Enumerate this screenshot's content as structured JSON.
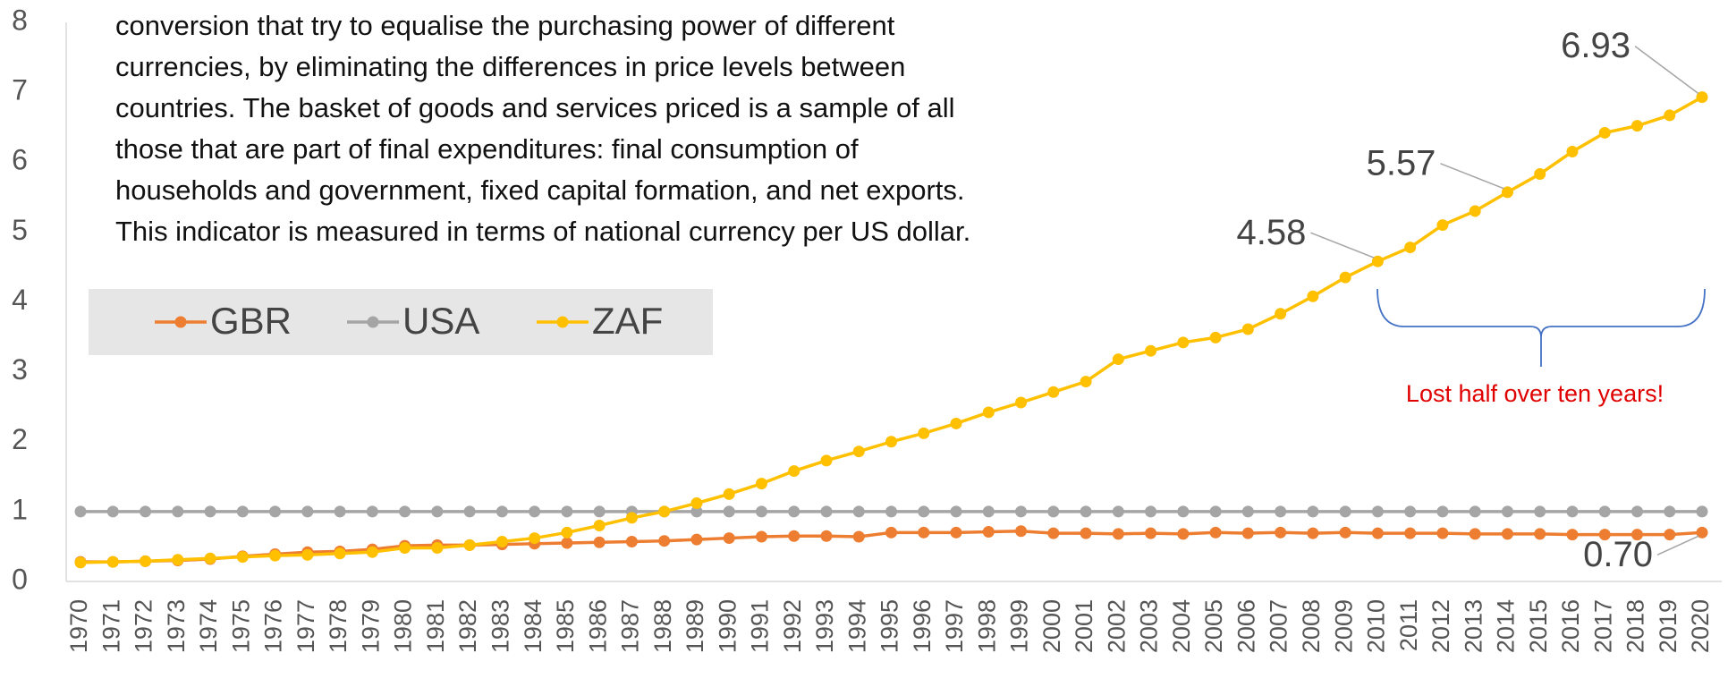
{
  "chart_data": {
    "type": "line",
    "categories": [
      "1970",
      "1971",
      "1972",
      "1973",
      "1974",
      "1975",
      "1976",
      "1977",
      "1978",
      "1979",
      "1980",
      "1981",
      "1982",
      "1983",
      "1984",
      "1985",
      "1986",
      "1987",
      "1988",
      "1989",
      "1990",
      "1991",
      "1992",
      "1993",
      "1994",
      "1995",
      "1996",
      "1997",
      "1998",
      "1999",
      "2000",
      "2001",
      "2002",
      "2003",
      "2004",
      "2005",
      "2006",
      "2007",
      "2008",
      "2009",
      "2010",
      "2011",
      "2012",
      "2013",
      "2014",
      "2015",
      "2016",
      "2017",
      "2018",
      "2019",
      "2020"
    ],
    "series": [
      {
        "name": "GBR",
        "color": "#ed7d31",
        "values": [
          0.28,
          0.28,
          0.29,
          0.3,
          0.32,
          0.36,
          0.39,
          0.42,
          0.43,
          0.46,
          0.51,
          0.52,
          0.52,
          0.53,
          0.54,
          0.55,
          0.56,
          0.57,
          0.58,
          0.6,
          0.62,
          0.64,
          0.65,
          0.65,
          0.64,
          0.7,
          0.7,
          0.7,
          0.71,
          0.72,
          0.69,
          0.69,
          0.68,
          0.69,
          0.68,
          0.7,
          0.69,
          0.7,
          0.69,
          0.7,
          0.69,
          0.69,
          0.69,
          0.68,
          0.68,
          0.68,
          0.67,
          0.67,
          0.67,
          0.67,
          0.7
        ],
        "value_labels": [
          null,
          null,
          null,
          null,
          null,
          null,
          null,
          null,
          null,
          null,
          null,
          null,
          null,
          null,
          null,
          null,
          null,
          null,
          null,
          null,
          null,
          null,
          null,
          null,
          null,
          null,
          null,
          null,
          null,
          null,
          null,
          null,
          null,
          null,
          null,
          null,
          null,
          null,
          null,
          null,
          null,
          null,
          null,
          null,
          null,
          null,
          null,
          null,
          null,
          null,
          "0.70"
        ]
      },
      {
        "name": "USA",
        "color": "#a5a5a5",
        "values": [
          1,
          1,
          1,
          1,
          1,
          1,
          1,
          1,
          1,
          1,
          1,
          1,
          1,
          1,
          1,
          1,
          1,
          1,
          1,
          1,
          1,
          1,
          1,
          1,
          1,
          1,
          1,
          1,
          1,
          1,
          1,
          1,
          1,
          1,
          1,
          1,
          1,
          1,
          1,
          1,
          1,
          1,
          1,
          1,
          1,
          1,
          1,
          1,
          1,
          1,
          1
        ]
      },
      {
        "name": "ZAF",
        "color": "#ffc000",
        "values": [
          0.27,
          0.28,
          0.29,
          0.31,
          0.33,
          0.35,
          0.37,
          0.38,
          0.4,
          0.42,
          0.48,
          0.48,
          0.52,
          0.57,
          0.62,
          0.7,
          0.8,
          0.91,
          1.0,
          1.12,
          1.25,
          1.4,
          1.58,
          1.73,
          1.86,
          2.0,
          2.12,
          2.26,
          2.42,
          2.56,
          2.71,
          2.86,
          3.18,
          3.3,
          3.42,
          3.49,
          3.61,
          3.83,
          4.08,
          4.35,
          4.58,
          4.78,
          5.1,
          5.3,
          5.57,
          5.83,
          6.15,
          6.42,
          6.52,
          6.67,
          6.93
        ],
        "value_labels": [
          null,
          null,
          null,
          null,
          null,
          null,
          null,
          null,
          null,
          null,
          null,
          null,
          null,
          null,
          null,
          null,
          null,
          null,
          null,
          null,
          null,
          null,
          null,
          null,
          null,
          null,
          null,
          null,
          null,
          null,
          null,
          null,
          null,
          null,
          null,
          null,
          null,
          null,
          null,
          null,
          "4.58",
          null,
          null,
          null,
          "5.57",
          null,
          null,
          null,
          null,
          null,
          "6.93"
        ]
      }
    ],
    "ylim": [
      0,
      8
    ],
    "yticks": [
      0,
      1,
      2,
      3,
      4,
      5,
      6,
      7,
      8
    ],
    "note": [
      "conversion that try to equalise the purchasing power of different",
      "currencies, by eliminating the differences in price levels between",
      "countries. The basket of goods and services priced is a sample of all",
      "those that are part of final expenditures: final consumption of",
      "households and government, fixed capital formation, and net exports.",
      "This indicator is measured in terms of national currency per US dollar."
    ],
    "callout": "Lost half over ten years!"
  }
}
